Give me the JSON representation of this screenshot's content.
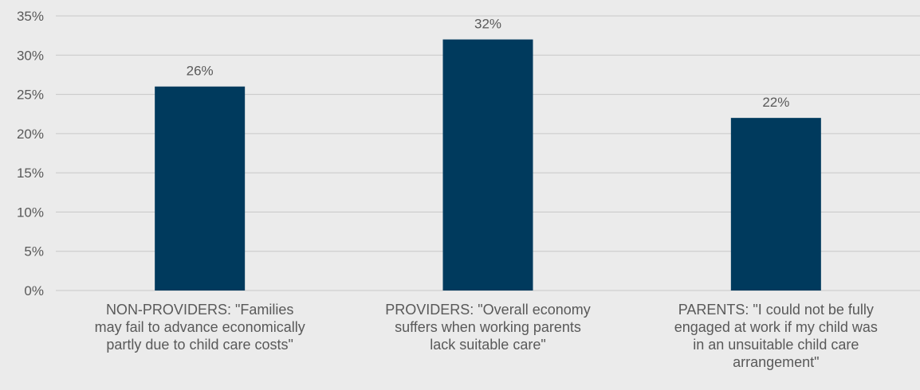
{
  "chart_data": {
    "type": "bar",
    "categories": [
      "NON-PROVIDERS: \"Families may fail to advance economically partly due to child care costs\"",
      "PROVIDERS: \"Overall economy suffers when working parents lack suitable care\"",
      "PARENTS: \"I could not be fully engaged at work if my child was in an unsuitable child care arrangement\""
    ],
    "category_lines": [
      [
        "NON-PROVIDERS: \"Families",
        "may fail to advance economically",
        "partly due to child care costs\""
      ],
      [
        "PROVIDERS: \"Overall economy",
        "suffers when working parents",
        "lack suitable care\""
      ],
      [
        "PARENTS: \"I could not be fully",
        "engaged at work if my child was",
        "in an unsuitable child care",
        "arrangement\""
      ]
    ],
    "values": [
      26,
      32,
      22
    ],
    "data_labels": [
      "26%",
      "32%",
      "22%"
    ],
    "yticks": [
      "0%",
      "5%",
      "10%",
      "15%",
      "20%",
      "25%",
      "30%",
      "35%"
    ],
    "ylim": [
      0,
      35
    ],
    "grid": true,
    "legend": "none",
    "colors": {
      "bar": "#003a5d",
      "grid": "#c8c8c8",
      "text": "#595959",
      "background": "#ebebeb"
    }
  }
}
